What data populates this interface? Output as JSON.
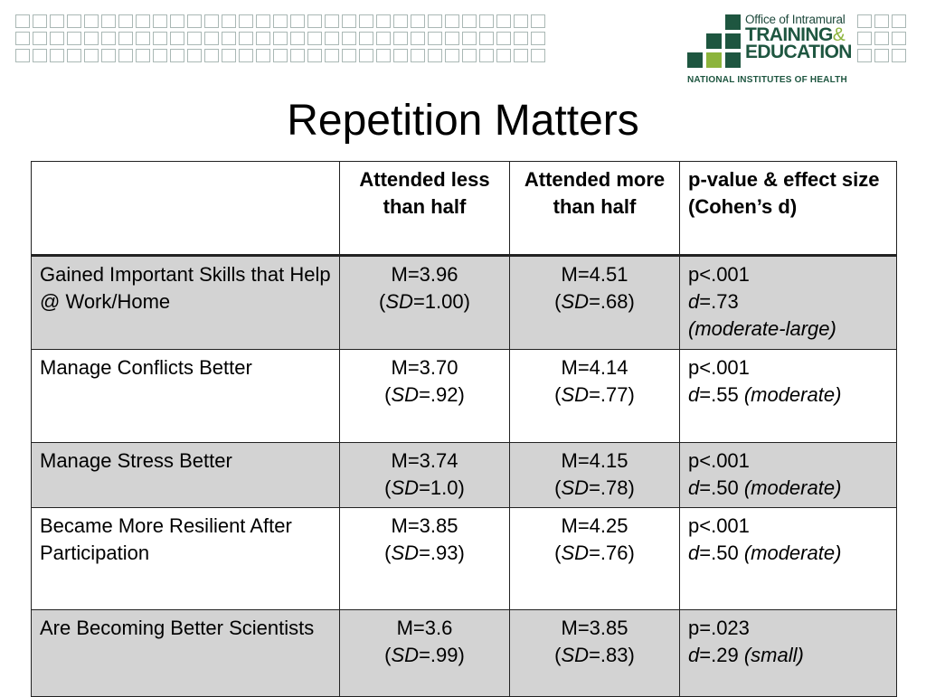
{
  "slide": {
    "title": "Repetition Matters"
  },
  "logo": {
    "line1": "Office of Intramural",
    "line2": "TRAINING",
    "amp": "&",
    "line3": "EDUCATION",
    "line4": "NATIONAL INSTITUTES OF HEALTH"
  },
  "colors": {
    "grid_outline": "#aab8b5",
    "logo_dark_green": "#1e5640",
    "logo_light_green": "#8cb43c",
    "row_shade": "#d3d3d3"
  },
  "table": {
    "headers": [
      "",
      "Attended less than half",
      "Attended more than half",
      "p-value & effect size (Cohen’s d)"
    ],
    "rows": [
      {
        "label": "Gained Important Skills that Help @ Work/Home",
        "shaded": true,
        "less": {
          "m": "M=3.96",
          "sd_prefix": "(",
          "sd_label": "SD",
          "sd_value": "=1.00)"
        },
        "more": {
          "m": "M=4.51",
          "sd_prefix": "(",
          "sd_label": "SD",
          "sd_value": "=.68)"
        },
        "stats": {
          "p": "p<.001",
          "d_label": "d",
          "d_value": "=.73",
          "size": "(moderate-large)"
        }
      },
      {
        "label": "Manage Conflicts Better",
        "shaded": false,
        "less": {
          "m": "M=3.70",
          "sd_prefix": "(",
          "sd_label": "SD",
          "sd_value": "=.92)"
        },
        "more": {
          "m": "M=4.14",
          "sd_prefix": "(",
          "sd_label": "SD",
          "sd_value": "=.77)"
        },
        "stats": {
          "p": "p<.001",
          "d_label": "d",
          "d_value": "=.55",
          "size": "(moderate)"
        }
      },
      {
        "label": "Manage Stress Better",
        "shaded": true,
        "less": {
          "m": "M=3.74",
          "sd_prefix": "(",
          "sd_label": "SD",
          "sd_value": "=1.0)"
        },
        "more": {
          "m": "M=4.15",
          "sd_prefix": "(",
          "sd_label": "SD",
          "sd_value": "=.78)"
        },
        "stats": {
          "p": "p<.001",
          "d_label": "d",
          "d_value": "=.50",
          "size": "(moderate)"
        }
      },
      {
        "label": "Became More Resilient After Participation",
        "shaded": false,
        "less": {
          "m": "M=3.85",
          "sd_prefix": "(",
          "sd_label": "SD",
          "sd_value": "=.93)"
        },
        "more": {
          "m": "M=4.25",
          "sd_prefix": "(",
          "sd_label": "SD",
          "sd_value": "=.76)"
        },
        "stats": {
          "p": "p<.001",
          "d_label": "d",
          "d_value": "=.50",
          "size": "(moderate)"
        }
      },
      {
        "label": "Are Becoming Better Scientists",
        "shaded": true,
        "less": {
          "m": "M=3.6",
          "sd_prefix": "(",
          "sd_label": "SD",
          "sd_value": "=.99)"
        },
        "more": {
          "m": "M=3.85",
          "sd_prefix": "(",
          "sd_label": "SD",
          "sd_value": "=.83)"
        },
        "stats": {
          "p": "p=.023",
          "d_label": "d",
          "d_value": "=.29",
          "size": "(small)"
        }
      }
    ]
  }
}
